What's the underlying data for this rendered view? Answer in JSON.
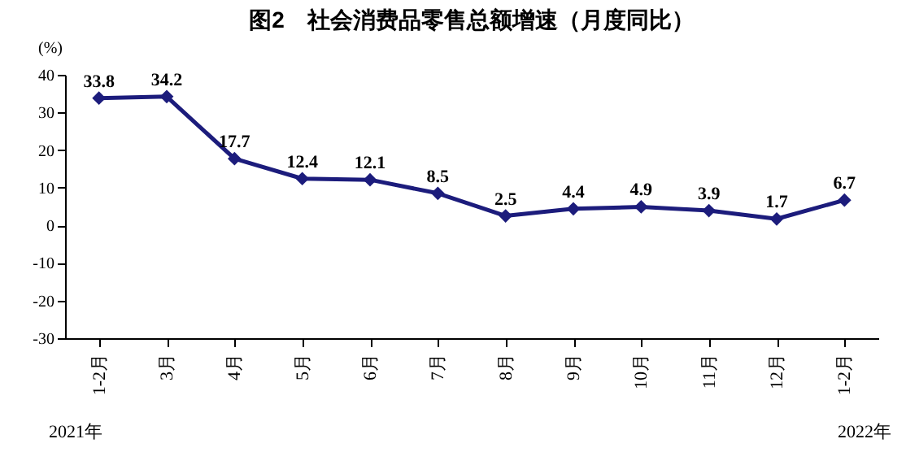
{
  "chart_data": {
    "type": "line",
    "title": "图2　社会消费品零售总额增速（月度同比）",
    "ylabel": "(%)",
    "categories": [
      "1-2月",
      "3月",
      "4月",
      "5月",
      "6月",
      "7月",
      "8月",
      "9月",
      "10月",
      "11月",
      "12月",
      "1-2月"
    ],
    "series": [
      {
        "color": "#1c1c7c",
        "values": [
          33.8,
          34.2,
          17.7,
          12.4,
          12.1,
          8.5,
          2.5,
          4.4,
          4.9,
          3.9,
          1.7,
          6.7
        ]
      }
    ],
    "ylim": [
      -30,
      40
    ],
    "yticks": [
      -30,
      -20,
      -10,
      0,
      10,
      20,
      30,
      40
    ],
    "annotations": [
      "2021年",
      "2022年"
    ],
    "data_labels": true,
    "marker": "diamond",
    "grid": false,
    "legend": false
  }
}
